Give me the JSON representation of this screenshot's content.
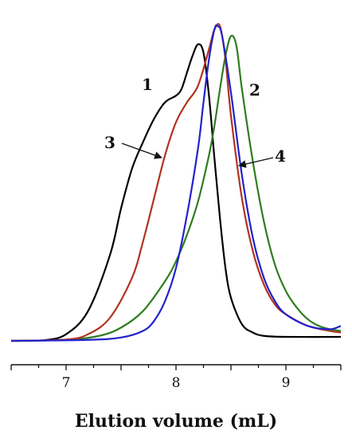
{
  "chart_data": {
    "type": "line",
    "title": "",
    "xlabel": "Elution volume (mL)",
    "ylabel": "",
    "xlim": [
      6.5,
      9.5
    ],
    "ylim": [
      0,
      1.0
    ],
    "xticks": [
      7,
      8,
      9
    ],
    "grid": false,
    "legend": "none",
    "series": [
      {
        "label": "1",
        "color": "#000000",
        "points": [
          [
            6.5,
            0
          ],
          [
            6.8,
            0.002
          ],
          [
            7.0,
            0.02
          ],
          [
            7.2,
            0.09
          ],
          [
            7.4,
            0.26
          ],
          [
            7.5,
            0.4
          ],
          [
            7.6,
            0.52
          ],
          [
            7.7,
            0.6
          ],
          [
            7.8,
            0.67
          ],
          [
            7.9,
            0.72
          ],
          [
            8.0,
            0.74
          ],
          [
            8.05,
            0.76
          ],
          [
            8.1,
            0.81
          ],
          [
            8.15,
            0.86
          ],
          [
            8.2,
            0.895
          ],
          [
            8.25,
            0.87
          ],
          [
            8.3,
            0.74
          ],
          [
            8.35,
            0.55
          ],
          [
            8.4,
            0.37
          ],
          [
            8.45,
            0.22
          ],
          [
            8.5,
            0.13
          ],
          [
            8.6,
            0.05
          ],
          [
            8.7,
            0.025
          ],
          [
            8.8,
            0.015
          ],
          [
            9.0,
            0.012
          ],
          [
            9.5,
            0.012
          ]
        ]
      },
      {
        "label": "2",
        "color": "#2e7d1f",
        "points": [
          [
            6.5,
            0
          ],
          [
            7.0,
            0.003
          ],
          [
            7.3,
            0.015
          ],
          [
            7.5,
            0.04
          ],
          [
            7.7,
            0.09
          ],
          [
            7.9,
            0.18
          ],
          [
            8.0,
            0.24
          ],
          [
            8.1,
            0.32
          ],
          [
            8.2,
            0.42
          ],
          [
            8.3,
            0.56
          ],
          [
            8.35,
            0.65
          ],
          [
            8.4,
            0.76
          ],
          [
            8.45,
            0.86
          ],
          [
            8.5,
            0.92
          ],
          [
            8.55,
            0.89
          ],
          [
            8.6,
            0.76
          ],
          [
            8.7,
            0.54
          ],
          [
            8.8,
            0.36
          ],
          [
            8.9,
            0.23
          ],
          [
            9.0,
            0.15
          ],
          [
            9.1,
            0.1
          ],
          [
            9.2,
            0.065
          ],
          [
            9.3,
            0.045
          ],
          [
            9.4,
            0.035
          ],
          [
            9.5,
            0.03
          ]
        ]
      },
      {
        "label": "3",
        "color": "#b0331f",
        "points": [
          [
            6.5,
            0
          ],
          [
            7.0,
            0.004
          ],
          [
            7.2,
            0.02
          ],
          [
            7.4,
            0.07
          ],
          [
            7.6,
            0.19
          ],
          [
            7.7,
            0.3
          ],
          [
            7.8,
            0.43
          ],
          [
            7.9,
            0.56
          ],
          [
            8.0,
            0.66
          ],
          [
            8.1,
            0.72
          ],
          [
            8.2,
            0.77
          ],
          [
            8.3,
            0.88
          ],
          [
            8.35,
            0.94
          ],
          [
            8.4,
            0.95
          ],
          [
            8.45,
            0.85
          ],
          [
            8.5,
            0.68
          ],
          [
            8.6,
            0.43
          ],
          [
            8.7,
            0.27
          ],
          [
            8.8,
            0.17
          ],
          [
            8.9,
            0.11
          ],
          [
            9.0,
            0.08
          ],
          [
            9.2,
            0.045
          ],
          [
            9.4,
            0.03
          ],
          [
            9.5,
            0.025
          ]
        ]
      },
      {
        "label": "4",
        "color": "#2222cc",
        "points": [
          [
            6.5,
            0
          ],
          [
            7.2,
            0.003
          ],
          [
            7.5,
            0.01
          ],
          [
            7.7,
            0.03
          ],
          [
            7.8,
            0.06
          ],
          [
            7.9,
            0.12
          ],
          [
            8.0,
            0.22
          ],
          [
            8.1,
            0.38
          ],
          [
            8.2,
            0.58
          ],
          [
            8.25,
            0.72
          ],
          [
            8.3,
            0.85
          ],
          [
            8.35,
            0.94
          ],
          [
            8.38,
            0.95
          ],
          [
            8.42,
            0.92
          ],
          [
            8.5,
            0.75
          ],
          [
            8.6,
            0.5
          ],
          [
            8.7,
            0.31
          ],
          [
            8.8,
            0.19
          ],
          [
            8.9,
            0.12
          ],
          [
            9.0,
            0.08
          ],
          [
            9.2,
            0.045
          ],
          [
            9.4,
            0.035
          ],
          [
            9.5,
            0.045
          ]
        ]
      }
    ],
    "annotations": [
      {
        "text": "1",
        "series": "1"
      },
      {
        "text": "2",
        "series": "2"
      },
      {
        "text": "3",
        "series": "3",
        "arrow": true
      },
      {
        "text": "4",
        "series": "4",
        "arrow": true
      }
    ]
  }
}
